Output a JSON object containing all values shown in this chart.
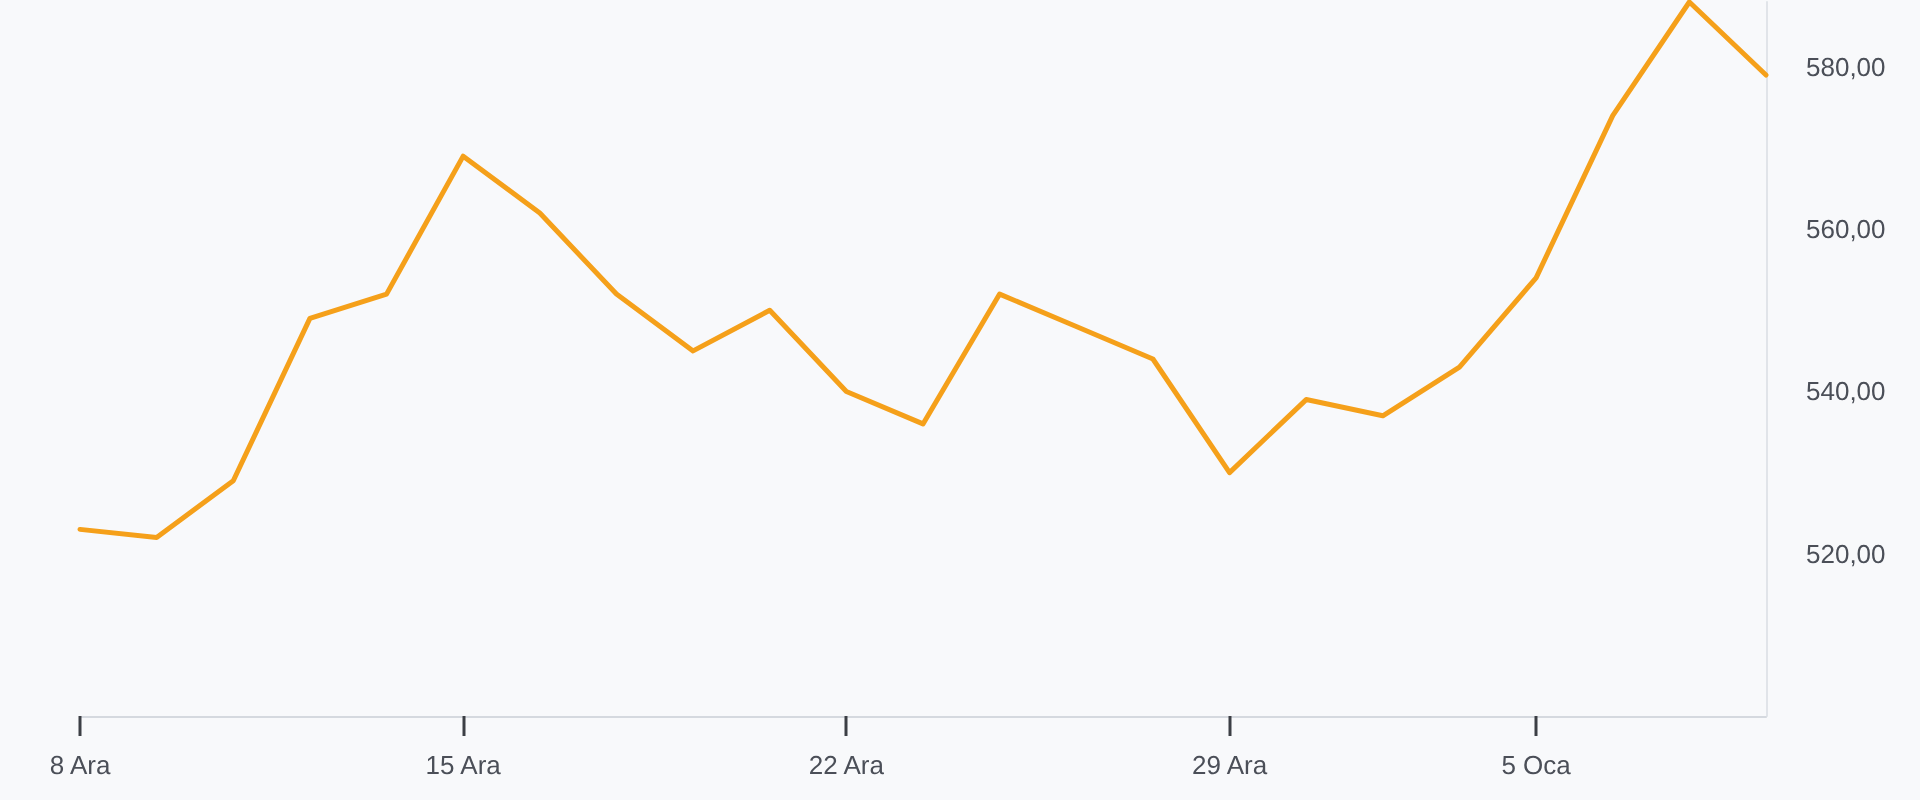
{
  "chart_data": {
    "type": "line",
    "categories": [
      "8 Ara",
      null,
      null,
      null,
      null,
      "15 Ara",
      null,
      null,
      null,
      null,
      "22 Ara",
      null,
      null,
      null,
      null,
      "29 Ara",
      null,
      null,
      null,
      "5 Oca",
      null,
      null,
      null
    ],
    "series": [
      {
        "color": "#f5a01a",
        "values": [
          523,
          522,
          529,
          549,
          552,
          569,
          562,
          552,
          545,
          550,
          540,
          536,
          552,
          548,
          544,
          530,
          539,
          537,
          543,
          554,
          574,
          588,
          579
        ]
      }
    ],
    "ylim": [
      500,
      588
    ],
    "yticks": [
      {
        "value": 520,
        "label": "520,00"
      },
      {
        "value": 540,
        "label": "540,00"
      },
      {
        "value": 560,
        "label": "560,00"
      },
      {
        "value": 580,
        "label": "580,00"
      }
    ],
    "marker": "none",
    "line_style": "solid"
  }
}
